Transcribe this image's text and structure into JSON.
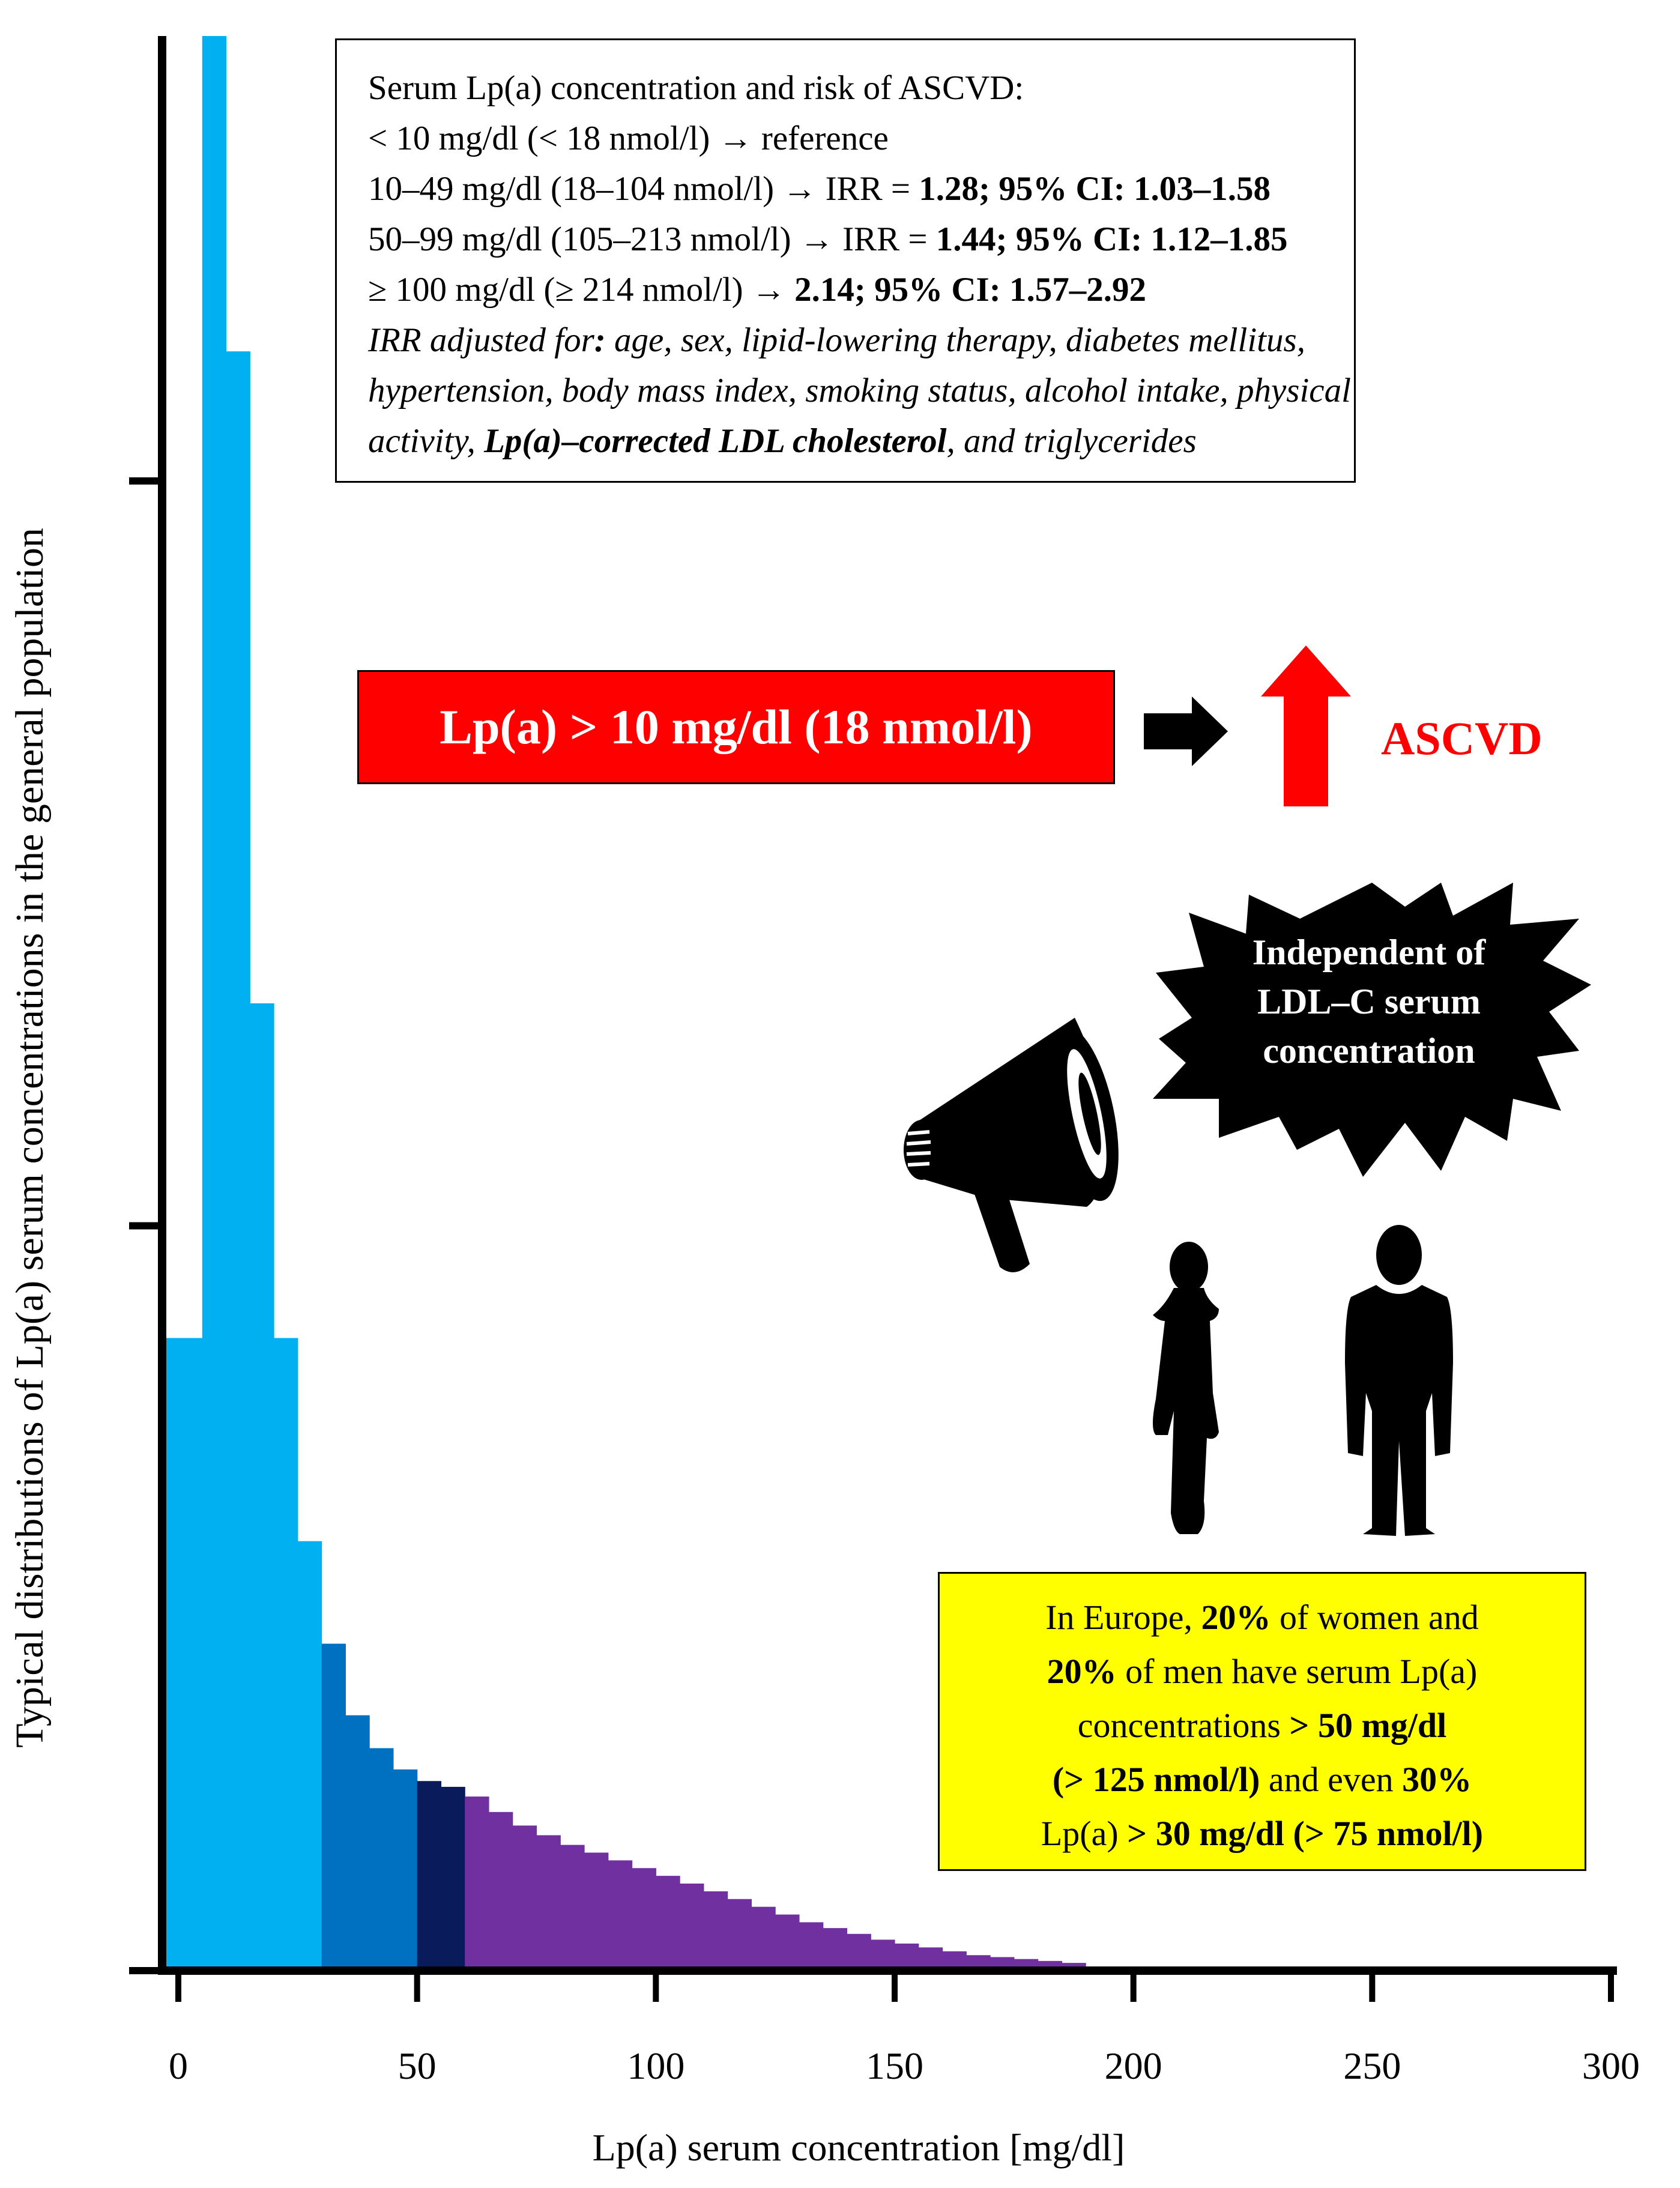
{
  "chart_data": {
    "type": "bar",
    "title": "",
    "xlabel": "Lp(a) serum concentration [mg/dl]",
    "ylabel": "Typical distributions of Lp(a) serum concentrations in the general population",
    "xlim": [
      0,
      300
    ],
    "ylim": [
      0,
      1.0
    ],
    "x_ticks": [
      0,
      50,
      100,
      150,
      200,
      250,
      300
    ],
    "y_tick_values": [
      0.385,
      0.77
    ],
    "bin_width": 5,
    "bins": [
      {
        "x0": 0,
        "x1": 5,
        "y": 0.327,
        "color": "#00b0f0"
      },
      {
        "x0": 5,
        "x1": 10,
        "y": 1.0,
        "color": "#00b0f0"
      },
      {
        "x0": 10,
        "x1": 15,
        "y": 0.837,
        "color": "#00b0f0"
      },
      {
        "x0": 15,
        "x1": 20,
        "y": 0.5,
        "color": "#00b0f0"
      },
      {
        "x0": 20,
        "x1": 25,
        "y": 0.327,
        "color": "#00b0f0"
      },
      {
        "x0": 25,
        "x1": 30,
        "y": 0.222,
        "color": "#00b0f0"
      },
      {
        "x0": 30,
        "x1": 35,
        "y": 0.169,
        "color": "#0070c0"
      },
      {
        "x0": 35,
        "x1": 40,
        "y": 0.132,
        "color": "#0070c0"
      },
      {
        "x0": 40,
        "x1": 45,
        "y": 0.115,
        "color": "#0070c0"
      },
      {
        "x0": 45,
        "x1": 50,
        "y": 0.104,
        "color": "#0070c0"
      },
      {
        "x0": 50,
        "x1": 55,
        "y": 0.098,
        "color": "#0a1b5c"
      },
      {
        "x0": 55,
        "x1": 60,
        "y": 0.095,
        "color": "#0a1b5c"
      },
      {
        "x0": 60,
        "x1": 65,
        "y": 0.09,
        "color": "#7030a0"
      },
      {
        "x0": 65,
        "x1": 70,
        "y": 0.082,
        "color": "#7030a0"
      },
      {
        "x0": 70,
        "x1": 75,
        "y": 0.075,
        "color": "#7030a0"
      },
      {
        "x0": 75,
        "x1": 80,
        "y": 0.07,
        "color": "#7030a0"
      },
      {
        "x0": 80,
        "x1": 85,
        "y": 0.065,
        "color": "#7030a0"
      },
      {
        "x0": 85,
        "x1": 90,
        "y": 0.061,
        "color": "#7030a0"
      },
      {
        "x0": 90,
        "x1": 95,
        "y": 0.057,
        "color": "#7030a0"
      },
      {
        "x0": 95,
        "x1": 100,
        "y": 0.053,
        "color": "#7030a0"
      },
      {
        "x0": 100,
        "x1": 105,
        "y": 0.049,
        "color": "#7030a0"
      },
      {
        "x0": 105,
        "x1": 110,
        "y": 0.045,
        "color": "#7030a0"
      },
      {
        "x0": 110,
        "x1": 115,
        "y": 0.041,
        "color": "#7030a0"
      },
      {
        "x0": 115,
        "x1": 120,
        "y": 0.037,
        "color": "#7030a0"
      },
      {
        "x0": 120,
        "x1": 125,
        "y": 0.033,
        "color": "#7030a0"
      },
      {
        "x0": 125,
        "x1": 130,
        "y": 0.029,
        "color": "#7030a0"
      },
      {
        "x0": 130,
        "x1": 135,
        "y": 0.025,
        "color": "#7030a0"
      },
      {
        "x0": 135,
        "x1": 140,
        "y": 0.022,
        "color": "#7030a0"
      },
      {
        "x0": 140,
        "x1": 145,
        "y": 0.019,
        "color": "#7030a0"
      },
      {
        "x0": 145,
        "x1": 150,
        "y": 0.016,
        "color": "#7030a0"
      },
      {
        "x0": 150,
        "x1": 155,
        "y": 0.014,
        "color": "#7030a0"
      },
      {
        "x0": 155,
        "x1": 160,
        "y": 0.012,
        "color": "#7030a0"
      },
      {
        "x0": 160,
        "x1": 165,
        "y": 0.01,
        "color": "#7030a0"
      },
      {
        "x0": 165,
        "x1": 170,
        "y": 0.008,
        "color": "#7030a0"
      },
      {
        "x0": 170,
        "x1": 175,
        "y": 0.007,
        "color": "#7030a0"
      },
      {
        "x0": 175,
        "x1": 180,
        "y": 0.006,
        "color": "#7030a0"
      },
      {
        "x0": 180,
        "x1": 185,
        "y": 0.005,
        "color": "#7030a0"
      },
      {
        "x0": 185,
        "x1": 190,
        "y": 0.004,
        "color": "#7030a0"
      }
    ],
    "grid": false
  },
  "annotations": {
    "info_box": {
      "l1": "Serum Lp(a) concentration and risk of ASCVD:",
      "l2": "< 10 mg/dl (< 18 nmol/l) → reference",
      "l3_a": "10–49 mg/dl (18–104 nmol/l) → IRR = ",
      "l3_b": "1.28; 95% CI: 1.03–1.58",
      "l4_a": "50–99 mg/dl (105–213 nmol/l) → IRR = ",
      "l4_b": "1.44; 95% CI: 1.12–1.85",
      "l5_a": "≥ 100 mg/dl (≥ 214 nmol/l) → ",
      "l5_b": "2.14; 95% CI: 1.57–2.92",
      "l6_a": "IRR adjusted for",
      "l6_b": ":",
      "l6_c": " age, sex, lipid-lowering therapy, diabetes mellitus,",
      "l7": "hypertension, body mass index, smoking status, alcohol intake, physical",
      "l8_a": "activity, ",
      "l8_b": "Lp(a)–corrected LDL cholesterol",
      "l8_c": ", and triglycerides"
    },
    "red_box": "Lp(a) > 10 mg/dl (18 nmol/l)",
    "ascvd": "ASCVD",
    "burst": {
      "l1": "Independent of",
      "l2": "LDL–C serum",
      "l3": "concentration"
    },
    "yellow_box": {
      "l1_a": "In Europe, ",
      "l1_b": "20%",
      "l1_c": " of women and",
      "l2_a": "20%",
      "l2_b": " of men have serum Lp(a)",
      "l3_a": "concentrations ",
      "l3_b": "> 50 mg/dl",
      "l4_a": "(> 125 nmol/l)",
      "l4_b": " and even ",
      "l4_c": "30%",
      "l5_a": "Lp(a) ",
      "l5_b": "> 30 mg/dl (> 75 nmol/l)"
    },
    "icons": [
      "megaphone-icon",
      "woman-silhouette-icon",
      "man-silhouette-icon",
      "up-arrow-icon",
      "right-arrow-icon",
      "speech-burst-icon"
    ],
    "colors": {
      "light_blue": "#00b0f0",
      "mid_blue": "#0070c0",
      "navy": "#0a1b5c",
      "purple": "#7030a0",
      "red": "#ff0000",
      "yellow": "#ffff00"
    }
  }
}
